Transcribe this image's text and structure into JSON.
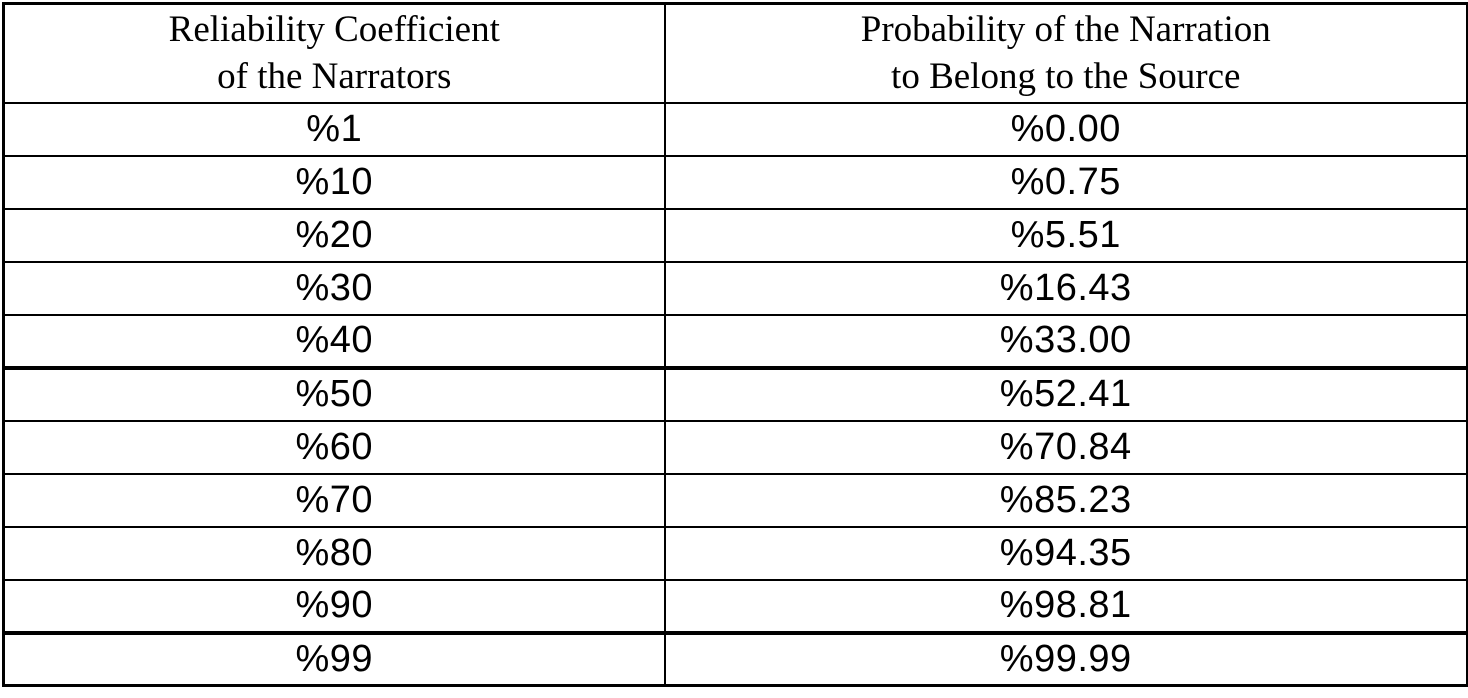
{
  "table": {
    "headers": {
      "coefficient": "Reliability Coefficient\nof the Narrators",
      "probability": "Probability of the Narration\nto Belong to the Source"
    },
    "rows": [
      {
        "coefficient": "%1",
        "probability": "%0.00"
      },
      {
        "coefficient": "%10",
        "probability": "%0.75"
      },
      {
        "coefficient": "%20",
        "probability": "%5.51"
      },
      {
        "coefficient": "%30",
        "probability": "%16.43"
      },
      {
        "coefficient": "%40",
        "probability": "%33.00"
      },
      {
        "coefficient": "%50",
        "probability": "%52.41"
      },
      {
        "coefficient": "%60",
        "probability": "%70.84"
      },
      {
        "coefficient": "%70",
        "probability": "%85.23"
      },
      {
        "coefficient": "%80",
        "probability": "%94.35"
      },
      {
        "coefficient": "%90",
        "probability": "%98.81"
      },
      {
        "coefficient": "%99",
        "probability": "%99.99"
      }
    ],
    "colors": {
      "text": "#000000",
      "border": "#000000",
      "background": "#ffffff"
    }
  },
  "chart_data": {
    "type": "table",
    "columns": [
      "Reliability Coefficient of the Narrators",
      "Probability of the Narration to Belong to the Source"
    ],
    "reliability_coefficient_percent": [
      1,
      10,
      20,
      30,
      40,
      50,
      60,
      70,
      80,
      90,
      99
    ],
    "probability_percent": [
      0.0,
      0.75,
      5.51,
      16.43,
      33.0,
      52.41,
      70.84,
      85.23,
      94.35,
      98.81,
      99.99
    ]
  }
}
